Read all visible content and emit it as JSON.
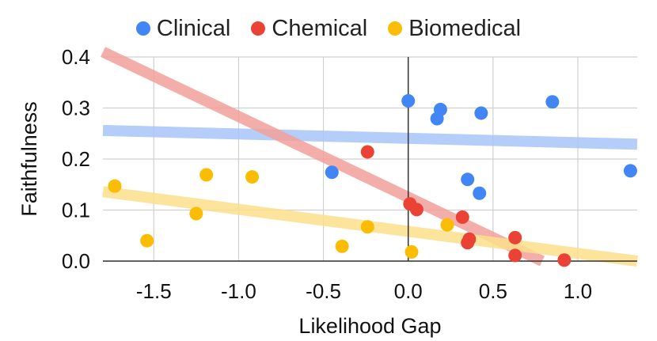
{
  "chart_data": {
    "type": "scatter",
    "xlabel": "Likelihood Gap",
    "ylabel": "Faithfulness",
    "xlim": [
      -1.8,
      1.35
    ],
    "ylim": [
      0.0,
      0.4
    ],
    "x_ticks": [
      -1.5,
      -1.0,
      -0.5,
      0.0,
      0.5,
      1.0
    ],
    "x_tick_labels": [
      "-1.5",
      "-1.0",
      "-0.5",
      "0.0",
      "0.5",
      "1.0"
    ],
    "y_ticks": [
      0.0,
      0.1,
      0.2,
      0.3,
      0.4
    ],
    "y_tick_labels": [
      "0.0",
      "0.1",
      "0.2",
      "0.3",
      "0.4"
    ],
    "grid": true,
    "legend_position": "top",
    "series": [
      {
        "name": "Clinical",
        "color": "#4285F4",
        "trend_color": "#A9C6F8",
        "points": [
          {
            "x": 0.0,
            "y": 0.314
          },
          {
            "x": 0.19,
            "y": 0.297
          },
          {
            "x": 0.17,
            "y": 0.279
          },
          {
            "x": 0.43,
            "y": 0.29
          },
          {
            "x": 0.85,
            "y": 0.312
          },
          {
            "x": -0.45,
            "y": 0.174
          },
          {
            "x": 0.35,
            "y": 0.16
          },
          {
            "x": 0.42,
            "y": 0.133
          },
          {
            "x": 1.31,
            "y": 0.177
          }
        ],
        "trend": {
          "x": [
            -1.8,
            1.35
          ],
          "y": [
            0.256,
            0.229
          ]
        }
      },
      {
        "name": "Chemical",
        "color": "#EA4335",
        "trend_color": "#F3A19B",
        "points": [
          {
            "x": -0.24,
            "y": 0.214
          },
          {
            "x": 0.01,
            "y": 0.112
          },
          {
            "x": 0.05,
            "y": 0.101
          },
          {
            "x": 0.32,
            "y": 0.086
          },
          {
            "x": 0.36,
            "y": 0.043
          },
          {
            "x": 0.35,
            "y": 0.036
          },
          {
            "x": 0.63,
            "y": 0.046
          },
          {
            "x": 0.63,
            "y": 0.011
          },
          {
            "x": 0.92,
            "y": 0.002
          }
        ],
        "trend": {
          "x": [
            -1.8,
            0.79
          ],
          "y": [
            0.41,
            0.0
          ]
        }
      },
      {
        "name": "Biomedical",
        "color": "#FBBC04",
        "trend_color": "#FCE08C",
        "points": [
          {
            "x": -1.73,
            "y": 0.147
          },
          {
            "x": -1.54,
            "y": 0.04
          },
          {
            "x": -1.19,
            "y": 0.169
          },
          {
            "x": -1.25,
            "y": 0.093
          },
          {
            "x": -0.92,
            "y": 0.165
          },
          {
            "x": -0.39,
            "y": 0.029
          },
          {
            "x": -0.24,
            "y": 0.067
          },
          {
            "x": 0.02,
            "y": 0.018
          },
          {
            "x": 0.23,
            "y": 0.071
          }
        ],
        "trend": {
          "x": [
            -1.8,
            1.35
          ],
          "y": [
            0.136,
            0.0
          ]
        }
      }
    ]
  }
}
